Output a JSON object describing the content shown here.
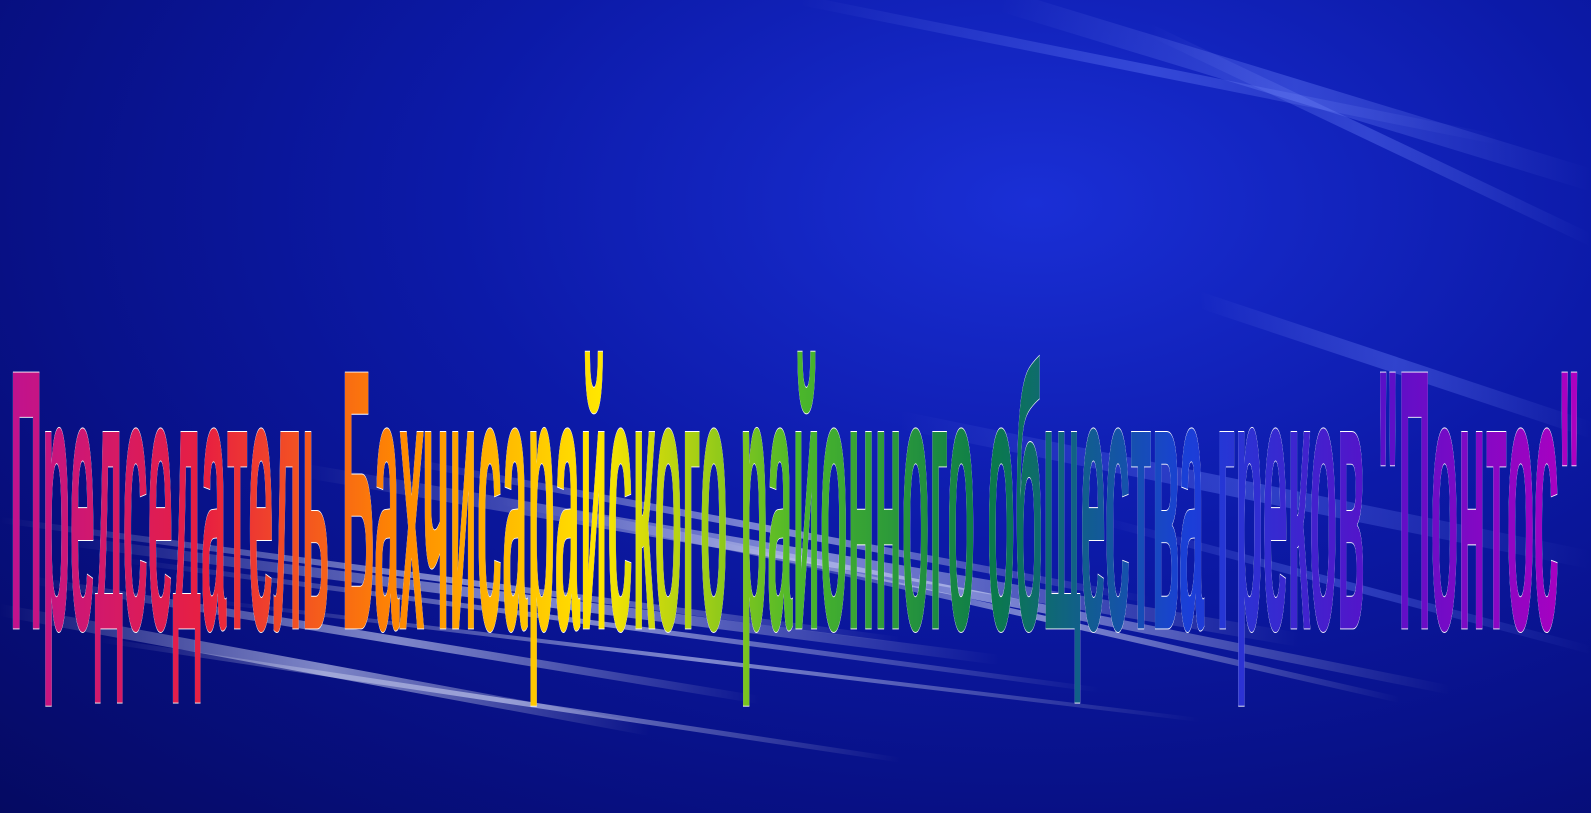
{
  "slide": {
    "title_text": "Председатель Бахчисарайского районного  общества греков \"Понтос\"",
    "background_color": "#0a0f78",
    "gradient_colors": [
      "#c0128f",
      "#e82040",
      "#ff8a00",
      "#ffe600",
      "#4db82a",
      "#0a7a4a",
      "#1a3fd8",
      "#5a10c8",
      "#b000c0"
    ],
    "outline_color": "#ffffff"
  }
}
